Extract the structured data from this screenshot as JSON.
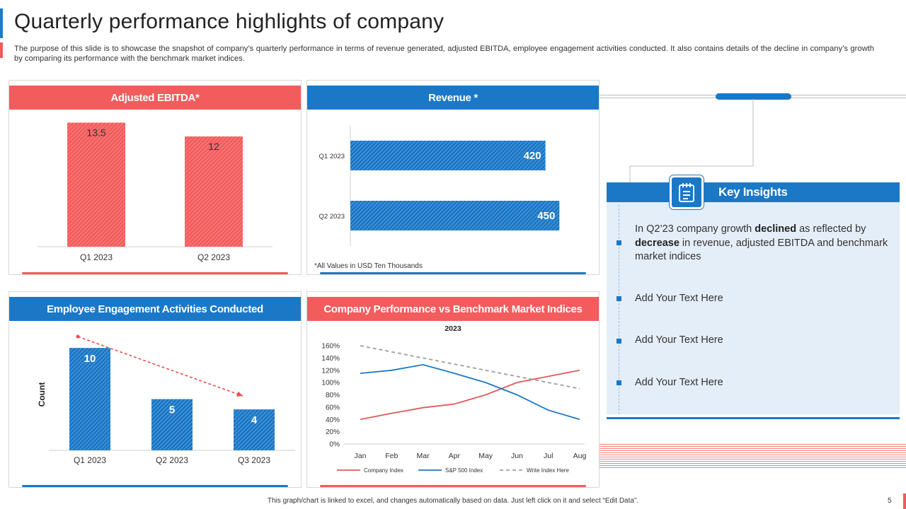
{
  "page": {
    "title": "Quarterly performance highlights of company",
    "description": "The purpose of this slide is to showcase the snapshot of company’s quarterly performance in terms of revenue generated, adjusted EBITDA, employee engagement activities conducted. It also contains details of the decline in company’s growth by comparing its performance with the benchmark market indices.",
    "footer_note": "This graph/chart is linked to excel, and changes automatically based on data. Just left click on it and select “Edit Data”.",
    "page_number": "5"
  },
  "colors": {
    "red": "#f25c5c",
    "blue": "#1b78c7",
    "grey": "#9e9e9e"
  },
  "revenue_note": "*All Values in USD Ten Thousands",
  "key_insights": {
    "title": "Key Insights",
    "icon": "notepad-icon",
    "item1": {
      "t1": "In Q2’23 company growth ",
      "b1": "declined",
      "t2": " as reflected by ",
      "b2": "decrease",
      "t3": " in revenue, adjusted EBITDA and benchmark market indices"
    },
    "item2": "Add Your Text Here",
    "item3": "Add Your Text Here",
    "item4": "Add Your Text Here"
  },
  "chart_data": [
    {
      "type": "bar",
      "title": "Adjusted EBITDA*",
      "categories": [
        "Q1 2023",
        "Q2 2023"
      ],
      "values": [
        13.5,
        12
      ],
      "value_labels": [
        "13.5",
        "12"
      ],
      "ylim": [
        0,
        15
      ]
    },
    {
      "type": "bar",
      "orientation": "horizontal",
      "title": "Revenue *",
      "categories": [
        "Q1 2023",
        "Q2 2023"
      ],
      "values": [
        420,
        450
      ],
      "value_labels": [
        "420",
        "450"
      ],
      "xlim": [
        0,
        480
      ]
    },
    {
      "type": "bar",
      "title": "Employee Engagement Activities Conducted",
      "ylabel": "Count",
      "categories": [
        "Q1 2023",
        "Q2 2023",
        "Q3 2023"
      ],
      "values": [
        10,
        5,
        4
      ],
      "value_labels": [
        "10",
        "5",
        "4"
      ],
      "ylim": [
        0,
        10.7
      ],
      "annotation": "dashed downward trend arrow"
    },
    {
      "type": "line",
      "title": "Company Performance vs Benchmark Market Indices",
      "subtitle": "2023",
      "categories": [
        "Jan",
        "Feb",
        "Mar",
        "Apr",
        "May",
        "Jun",
        "Jul",
        "Aug"
      ],
      "y_ticks": [
        "0%",
        "20%",
        "40%",
        "60%",
        "80%",
        "100%",
        "120%",
        "140%",
        "160%"
      ],
      "ylim": [
        0,
        160
      ],
      "series": [
        {
          "name": "Company Index",
          "color": "#e05a5a",
          "dash": "",
          "values": [
            40,
            50,
            59,
            65,
            80,
            100,
            110,
            120
          ]
        },
        {
          "name": "S&P 500 Index",
          "color": "#1b78c7",
          "dash": "",
          "values": [
            115,
            120,
            129,
            115,
            100,
            80,
            55,
            40
          ]
        },
        {
          "name": "Write Index Here",
          "color": "#9e9e9e",
          "dash": "5,4",
          "values": [
            160,
            150,
            140,
            130,
            120,
            110,
            100,
            90
          ]
        }
      ]
    }
  ]
}
